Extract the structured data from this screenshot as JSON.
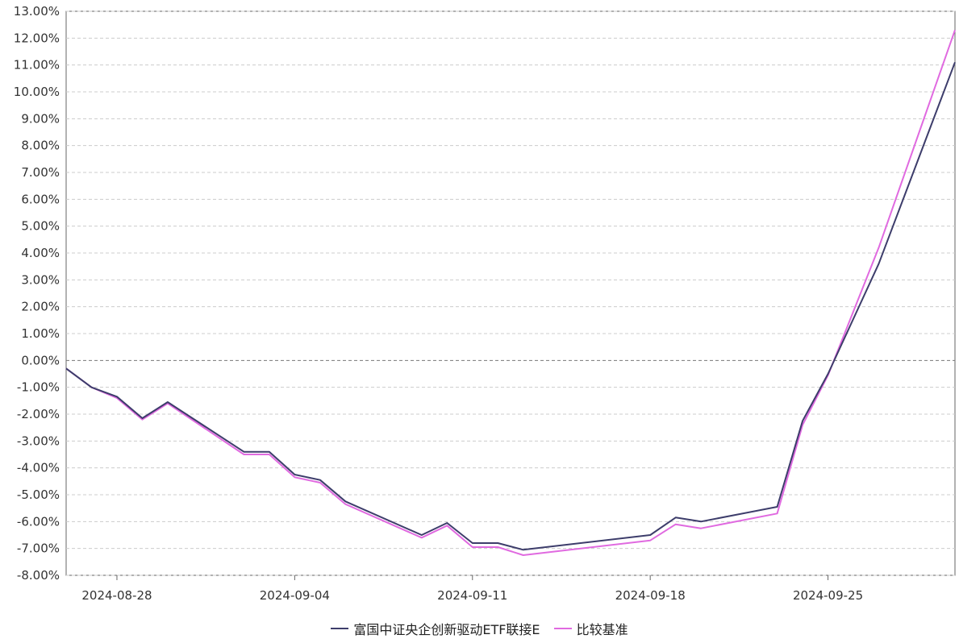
{
  "chart_data": {
    "type": "line",
    "title": "",
    "xlabel": "",
    "ylabel": "",
    "ylim": [
      -8,
      13
    ],
    "yticks": [
      13,
      12,
      11,
      10,
      9,
      8,
      7,
      6,
      5,
      4,
      3,
      2,
      1,
      0,
      -1,
      -2,
      -3,
      -4,
      -5,
      -6,
      -7,
      -8
    ],
    "ytick_labels": [
      "13.00%",
      "12.00%",
      "11.00%",
      "10.00%",
      "9.00%",
      "8.00%",
      "7.00%",
      "6.00%",
      "5.00%",
      "4.00%",
      "3.00%",
      "2.00%",
      "1.00%",
      "0.00%",
      "-1.00%",
      "-2.00%",
      "-3.00%",
      "-4.00%",
      "-5.00%",
      "-6.00%",
      "-7.00%",
      "-8.00%"
    ],
    "xticks": [
      "2024-08-28",
      "2024-09-04",
      "2024-09-11",
      "2024-09-18",
      "2024-09-25"
    ],
    "xlim": [
      "2024-08-26",
      "2024-09-30"
    ],
    "grid": true,
    "legend_position": "bottom-center",
    "x": [
      "2024-08-26",
      "2024-08-27",
      "2024-08-28",
      "2024-08-29",
      "2024-08-30",
      "2024-09-02",
      "2024-09-03",
      "2024-09-04",
      "2024-09-05",
      "2024-09-06",
      "2024-09-09",
      "2024-09-10",
      "2024-09-11",
      "2024-09-12",
      "2024-09-13",
      "2024-09-18",
      "2024-09-19",
      "2024-09-20",
      "2024-09-23",
      "2024-09-24",
      "2024-09-25",
      "2024-09-27",
      "2024-09-30"
    ],
    "series": [
      {
        "name": "富国中证央企创新驱动ETF联接E",
        "color": "#3d3d6b",
        "values": [
          -0.3,
          -1.0,
          -1.35,
          -2.15,
          -1.55,
          -3.4,
          -3.4,
          -4.25,
          -4.45,
          -5.25,
          -6.5,
          -6.05,
          -6.8,
          -6.8,
          -7.05,
          -6.5,
          -5.85,
          -6.0,
          -5.45,
          -2.25,
          -0.5,
          3.6,
          11.1
        ]
      },
      {
        "name": "比较基准",
        "color": "#e06ae0",
        "values": [
          -0.3,
          -1.0,
          -1.4,
          -2.2,
          -1.6,
          -3.5,
          -3.5,
          -4.35,
          -4.55,
          -5.35,
          -6.6,
          -6.15,
          -6.95,
          -6.95,
          -7.25,
          -6.7,
          -6.1,
          -6.25,
          -5.7,
          -2.4,
          -0.55,
          4.2,
          12.3
        ]
      }
    ]
  }
}
